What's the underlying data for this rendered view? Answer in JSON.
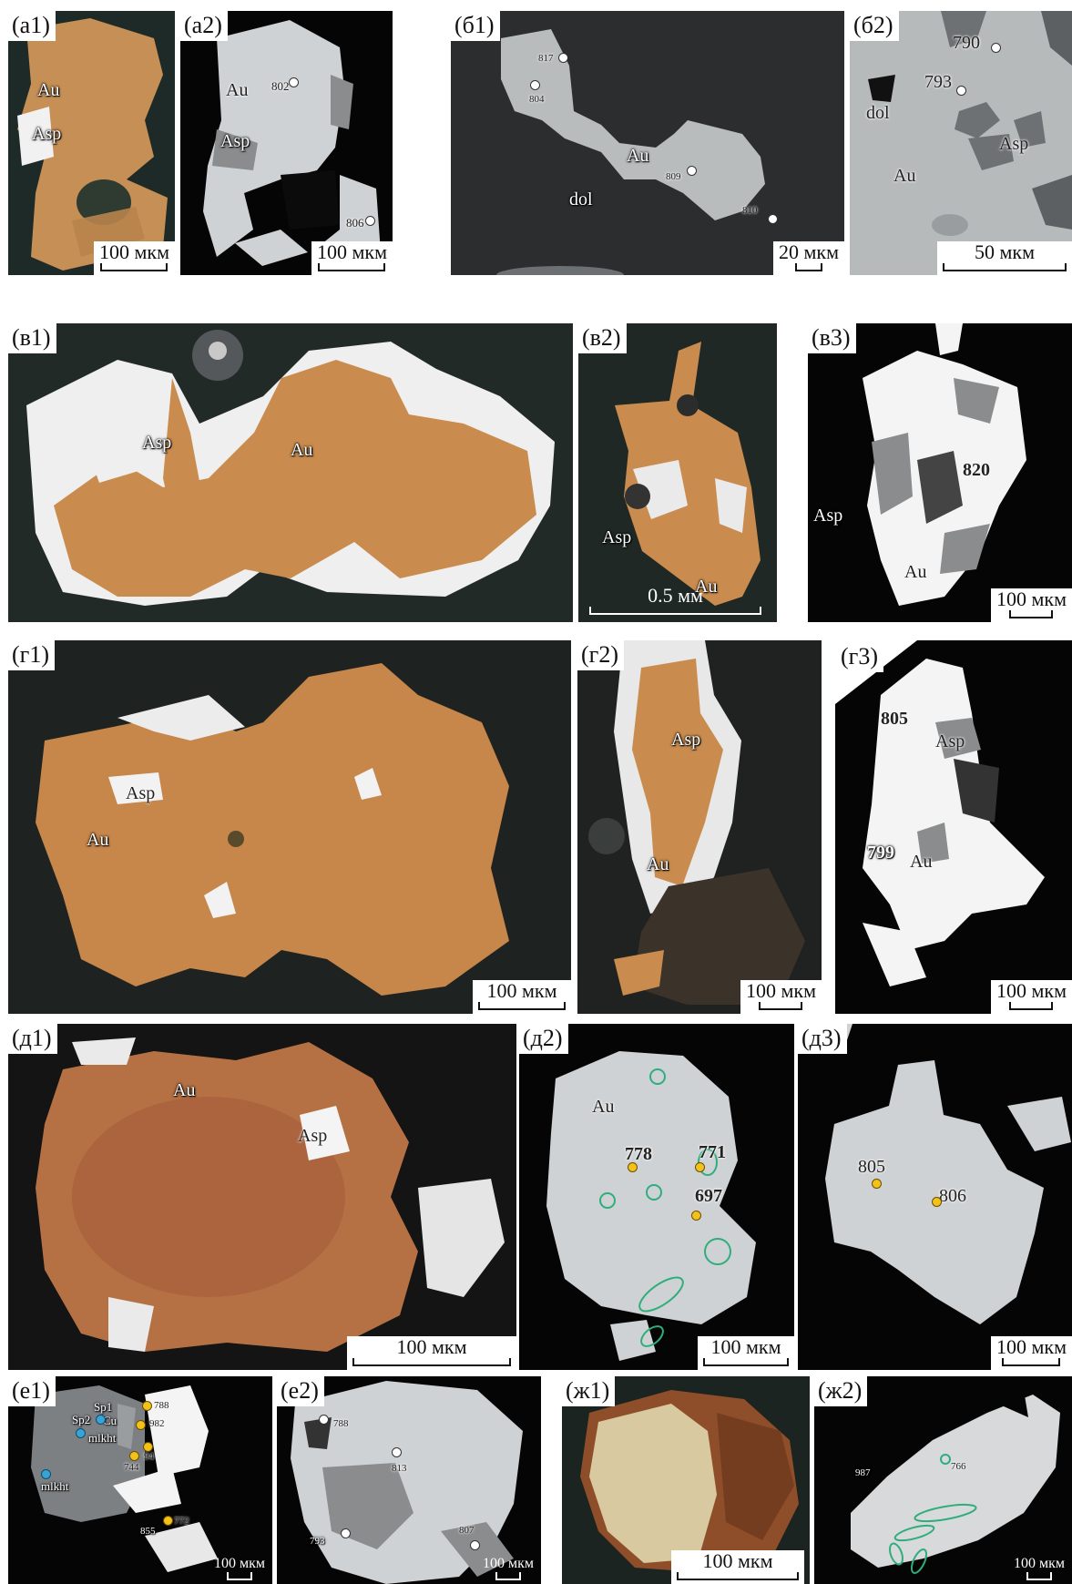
{
  "colors": {
    "gold": "#c98c4e",
    "gold_light": "#d9a46a",
    "bse_light": "#cfd2d4",
    "bse_mid": "#8a8c8e",
    "arsenopyrite_reflected": "#f2f2f2",
    "spot_yellow": "#f2c21a",
    "spot_blue": "#3aa3d6",
    "ellipse_green": "#2fae7b"
  },
  "panels": {
    "a1": {
      "label": "(а1)",
      "minerals": [
        "Au",
        "Asp"
      ],
      "scale": "100 мкм"
    },
    "a2": {
      "label": "(а2)",
      "minerals": [
        "Au",
        "Asp"
      ],
      "points": [
        "802",
        "806"
      ],
      "scale": "100 мкм"
    },
    "b1": {
      "label": "(б1)",
      "minerals": [
        "Au",
        "dol"
      ],
      "points": [
        "817",
        "804",
        "809",
        "810"
      ],
      "scale": "20 мкм"
    },
    "b2": {
      "label": "(б2)",
      "minerals": [
        "dol",
        "Au",
        "Asp"
      ],
      "points": [
        "790",
        "793"
      ],
      "scale": "50 мкм"
    },
    "v1": {
      "label": "(в1)",
      "minerals": [
        "Asp",
        "Au"
      ]
    },
    "v2": {
      "label": "(в2)",
      "minerals": [
        "Asp",
        "Au"
      ],
      "scale": "0.5 мм"
    },
    "v3": {
      "label": "(в3)",
      "minerals": [
        "Asp",
        "Au"
      ],
      "points": [
        "820"
      ],
      "scale": "100 мкм"
    },
    "g1": {
      "label": "(г1)",
      "minerals": [
        "Asp",
        "Au"
      ],
      "scale": "100 мкм"
    },
    "g2": {
      "label": "(г2)",
      "minerals": [
        "Asp",
        "Au"
      ],
      "scale": "100 мкм"
    },
    "g3": {
      "label": "(г3)",
      "minerals": [
        "Asp",
        "Au"
      ],
      "points": [
        "805",
        "799"
      ],
      "scale": "100 мкм"
    },
    "d1": {
      "label": "(д1)",
      "minerals": [
        "Au",
        "Asp"
      ],
      "scale": "100 мкм"
    },
    "d2": {
      "label": "(д2)",
      "minerals": [
        "Au"
      ],
      "points": [
        "778",
        "771",
        "697"
      ],
      "scale": "100 мкм"
    },
    "d3": {
      "label": "(д3)",
      "points": [
        "805",
        "806"
      ],
      "scale": "100 мкм"
    },
    "e1": {
      "label": "(е1)",
      "minerals": [
        "Sp1",
        "Cu",
        "Sp2",
        "mlkht",
        "mlkht"
      ],
      "points": [
        "788",
        "982",
        "94",
        "744",
        "855",
        "772"
      ],
      "scale": "100 мкм"
    },
    "e2": {
      "label": "(е2)",
      "points": [
        "788",
        "813",
        "793",
        "807"
      ],
      "scale": "100 мкм"
    },
    "zh1": {
      "label": "(ж1)",
      "scale": "100 мкм"
    },
    "zh2": {
      "label": "(ж2)",
      "points": [
        "766",
        "987"
      ],
      "scale": "100 мкм"
    }
  }
}
